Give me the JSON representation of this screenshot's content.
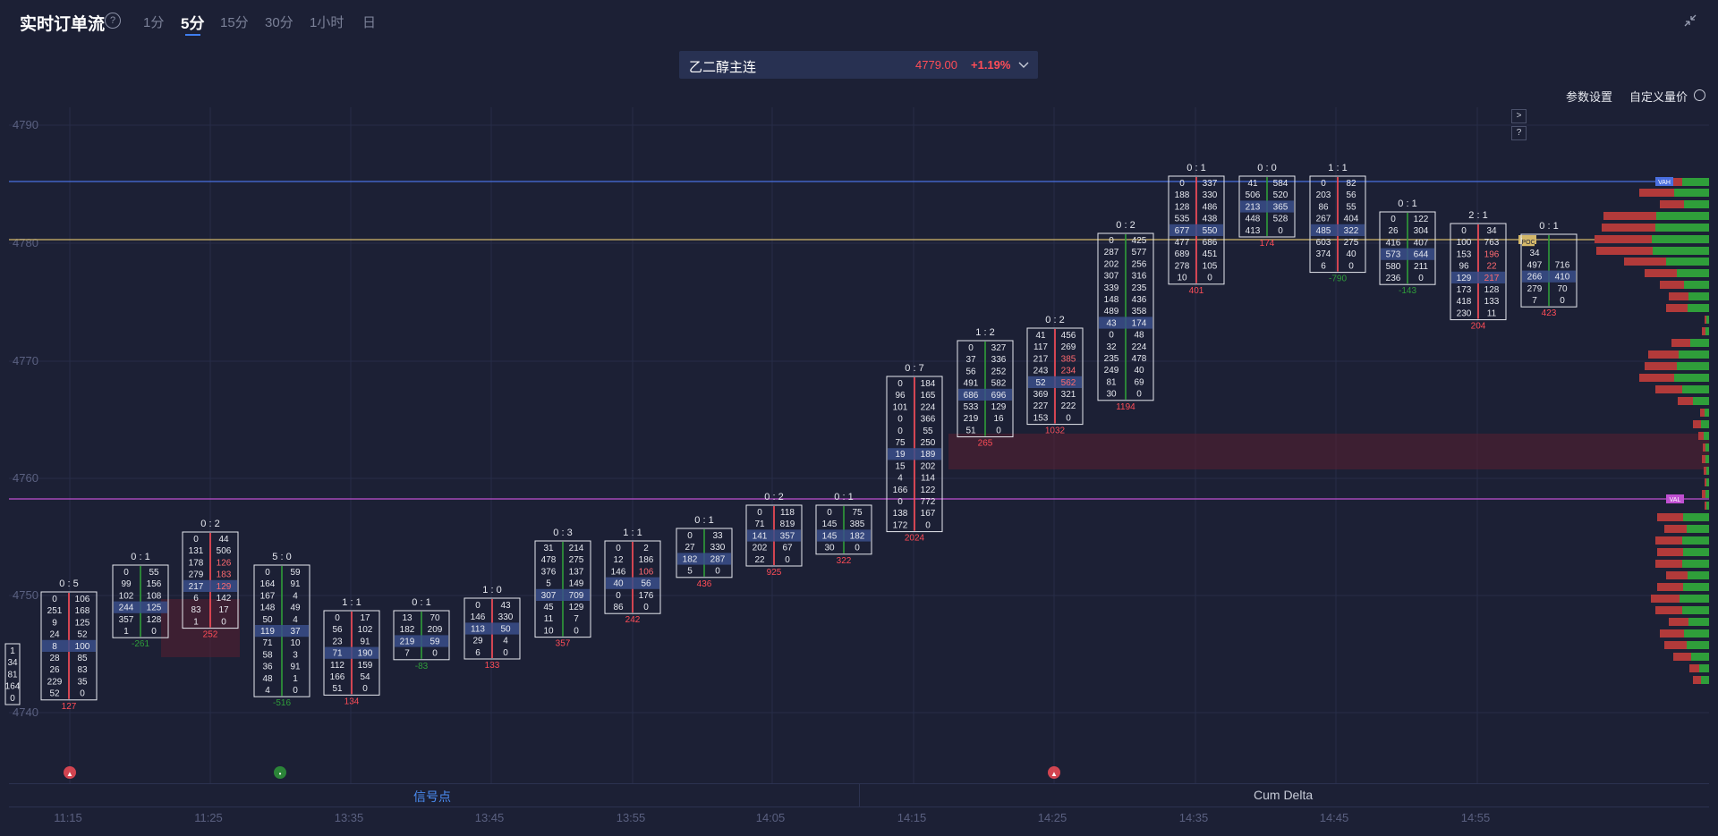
{
  "header": {
    "title": "实时订单流",
    "help_icon": "question-circle-icon",
    "tabs": [
      {
        "label": "1分",
        "active": false
      },
      {
        "label": "5分",
        "active": true
      },
      {
        "label": "15分",
        "active": false
      },
      {
        "label": "30分",
        "active": false
      },
      {
        "label": "1小时",
        "active": false
      },
      {
        "label": "日",
        "active": false
      }
    ],
    "collapse_icon": "collapse-arrows-icon"
  },
  "symbol": {
    "name": "乙二醇主连",
    "price": "4779.00",
    "change": "+1.19%",
    "dropdown_icon": "chevron-down-icon"
  },
  "settings": {
    "params_label": "参数设置",
    "custom_label": "自定义量价"
  },
  "side_buttons": [
    ">",
    "?"
  ],
  "bottom_tabs": {
    "signal": "信号点",
    "cum_delta": "Cum Delta"
  },
  "colors": {
    "background": "#1c2035",
    "up": "#ff4d57",
    "down": "#2f9e3a",
    "vah_line": "#4a6fe0",
    "poc_line": "#d4b86a",
    "val_line": "#c04fd1",
    "accent": "#3f7ef0"
  },
  "chart_data": {
    "type": "footprint",
    "y_ticks": [
      "4790",
      "4780",
      "4770",
      "4760",
      "4750",
      "4740"
    ],
    "x_ticks": [
      "11:15",
      "11:25",
      "13:35",
      "13:45",
      "13:55",
      "14:05",
      "14:15",
      "14:25",
      "14:35",
      "14:45",
      "14:55"
    ],
    "value_area": {
      "VAH": "VAH",
      "POC": "POC",
      "VAL": "VAL"
    },
    "bars": [
      {
        "head": "",
        "rows": [
          [
            "1",
            ""
          ],
          [
            "34",
            ""
          ],
          [
            "81",
            ""
          ],
          [
            "164",
            ""
          ],
          [
            "0",
            ""
          ]
        ],
        "delta": ""
      },
      {
        "head": "0 : 5",
        "rows": [
          [
            "0",
            "106"
          ],
          [
            "251",
            "168"
          ],
          [
            "9",
            "125"
          ],
          [
            "24",
            "52"
          ],
          [
            "8",
            "100"
          ],
          [
            "28",
            "85"
          ],
          [
            "26",
            "83"
          ],
          [
            "229",
            "35"
          ],
          [
            "52",
            "0"
          ]
        ],
        "delta": "127"
      },
      {
        "head": "0 : 1",
        "rows": [
          [
            "0",
            "55"
          ],
          [
            "99",
            "156"
          ],
          [
            "102",
            "108"
          ],
          [
            "244",
            "125"
          ],
          [
            "357",
            "128"
          ],
          [
            "1",
            "0"
          ]
        ],
        "delta": "-261"
      },
      {
        "head": "0 : 2",
        "rows": [
          [
            "0",
            "44"
          ],
          [
            "131",
            "506"
          ],
          [
            "178",
            "126"
          ],
          [
            "279",
            "183"
          ],
          [
            "217",
            "129"
          ],
          [
            "6",
            "142"
          ],
          [
            "83",
            "17"
          ],
          [
            "1",
            "0"
          ]
        ],
        "delta": "252"
      },
      {
        "head": "5 : 0",
        "rows": [
          [
            "0",
            "59"
          ],
          [
            "164",
            "91"
          ],
          [
            "167",
            "4"
          ],
          [
            "148",
            "49"
          ],
          [
            "50",
            "4"
          ],
          [
            "119",
            "37"
          ],
          [
            "71",
            "10"
          ],
          [
            "58",
            "3"
          ],
          [
            "36",
            "91"
          ],
          [
            "48",
            "1"
          ],
          [
            "4",
            "0"
          ]
        ],
        "delta": "-516"
      },
      {
        "head": "1 : 1",
        "rows": [
          [
            "0",
            "17"
          ],
          [
            "56",
            "102"
          ],
          [
            "23",
            "91"
          ],
          [
            "71",
            "190"
          ],
          [
            "112",
            "159"
          ],
          [
            "166",
            "54"
          ],
          [
            "51",
            "0"
          ]
        ],
        "delta": "134"
      },
      {
        "head": "0 : 1",
        "rows": [
          [
            "13",
            "70"
          ],
          [
            "182",
            "209"
          ],
          [
            "219",
            "59"
          ],
          [
            "7",
            "0"
          ]
        ],
        "delta": "-83"
      },
      {
        "head": "1 : 0",
        "rows": [
          [
            "0",
            "43"
          ],
          [
            "146",
            "330"
          ],
          [
            "113",
            "50"
          ],
          [
            "29",
            "4"
          ],
          [
            "6",
            "0"
          ]
        ],
        "delta": "133"
      },
      {
        "head": "0 : 3",
        "rows": [
          [
            "31",
            "214"
          ],
          [
            "478",
            "275"
          ],
          [
            "376",
            "137"
          ],
          [
            "5",
            "149"
          ],
          [
            "307",
            "709"
          ],
          [
            "45",
            "129"
          ],
          [
            "11",
            "7"
          ],
          [
            "10",
            "0"
          ]
        ],
        "delta": "357"
      },
      {
        "head": "1 : 1",
        "rows": [
          [
            "0",
            "2"
          ],
          [
            "12",
            "186"
          ],
          [
            "146",
            "106"
          ],
          [
            "40",
            "56"
          ],
          [
            "0",
            "176"
          ],
          [
            "86",
            "0"
          ]
        ],
        "delta": "242"
      },
      {
        "head": "0 : 1",
        "rows": [
          [
            "0",
            "33"
          ],
          [
            "27",
            "330"
          ],
          [
            "182",
            "287"
          ],
          [
            "5",
            "0"
          ]
        ],
        "delta": "436"
      },
      {
        "head": "0 : 2",
        "rows": [
          [
            "0",
            "118"
          ],
          [
            "71",
            "819"
          ],
          [
            "141",
            "357"
          ],
          [
            "202",
            "67"
          ],
          [
            "22",
            "0"
          ]
        ],
        "delta": "925"
      },
      {
        "head": "0 : 1",
        "rows": [
          [
            "0",
            "75"
          ],
          [
            "145",
            "385"
          ],
          [
            "145",
            "182"
          ],
          [
            "30",
            "0"
          ]
        ],
        "delta": "322"
      },
      {
        "head": "0 : 7",
        "rows": [
          [
            "0",
            "184"
          ],
          [
            "96",
            "165"
          ],
          [
            "101",
            "224"
          ],
          [
            "0",
            "366"
          ],
          [
            "0",
            "55"
          ],
          [
            "75",
            "250"
          ],
          [
            "19",
            "189"
          ],
          [
            "15",
            "202"
          ],
          [
            "4",
            "114"
          ],
          [
            "166",
            "122"
          ],
          [
            "0",
            "772"
          ],
          [
            "138",
            "167"
          ],
          [
            "172",
            "0"
          ]
        ],
        "delta": "2024"
      },
      {
        "head": "1 : 2",
        "rows": [
          [
            "0",
            "327"
          ],
          [
            "37",
            "336"
          ],
          [
            "56",
            "252"
          ],
          [
            "491",
            "582"
          ],
          [
            "686",
            "696"
          ],
          [
            "533",
            "129"
          ],
          [
            "219",
            "16"
          ],
          [
            "51",
            "0"
          ]
        ],
        "delta": "265"
      },
      {
        "head": "0 : 2",
        "rows": [
          [
            "41",
            "456"
          ],
          [
            "117",
            "269"
          ],
          [
            "217",
            "385"
          ],
          [
            "243",
            "234"
          ],
          [
            "52",
            "562"
          ],
          [
            "369",
            "321"
          ],
          [
            "227",
            "222"
          ],
          [
            "153",
            "0"
          ]
        ],
        "delta": "1032"
      },
      {
        "head": "0 : 2",
        "rows": [
          [
            "0",
            "425"
          ],
          [
            "287",
            "577"
          ],
          [
            "202",
            "256"
          ],
          [
            "307",
            "316"
          ],
          [
            "339",
            "235"
          ],
          [
            "148",
            "436"
          ],
          [
            "489",
            "358"
          ],
          [
            "43",
            "174"
          ],
          [
            "0",
            "48"
          ],
          [
            "32",
            "224"
          ],
          [
            "235",
            "478"
          ],
          [
            "249",
            "40"
          ],
          [
            "81",
            "69"
          ],
          [
            "30",
            "0"
          ]
        ],
        "delta": "1194"
      },
      {
        "head": "0 : 1",
        "rows": [
          [
            "0",
            "337"
          ],
          [
            "188",
            "330"
          ],
          [
            "128",
            "486"
          ],
          [
            "535",
            "438"
          ],
          [
            "677",
            "550"
          ],
          [
            "477",
            "686"
          ],
          [
            "689",
            "451"
          ],
          [
            "278",
            "105"
          ],
          [
            "10",
            "0"
          ]
        ],
        "delta": "401"
      },
      {
        "head": "0 : 0",
        "rows": [
          [
            "41",
            "584"
          ],
          [
            "506",
            "520"
          ],
          [
            "213",
            "365"
          ],
          [
            "448",
            "528"
          ],
          [
            "413",
            "0"
          ]
        ],
        "delta": "174"
      },
      {
        "head": "1 : 1",
        "rows": [
          [
            "0",
            "82"
          ],
          [
            "203",
            "56"
          ],
          [
            "86",
            "55"
          ],
          [
            "267",
            "404"
          ],
          [
            "485",
            "322"
          ],
          [
            "603",
            "275"
          ],
          [
            "374",
            "40"
          ],
          [
            "6",
            "0"
          ]
        ],
        "delta": "-790"
      },
      {
        "head": "0 : 1",
        "rows": [
          [
            "0",
            "122"
          ],
          [
            "26",
            "304"
          ],
          [
            "416",
            "407"
          ],
          [
            "573",
            "644"
          ],
          [
            "580",
            "211"
          ],
          [
            "236",
            "0"
          ]
        ],
        "delta": "-143"
      },
      {
        "head": "2 : 1",
        "rows": [
          [
            "0",
            "34"
          ],
          [
            "100",
            "763"
          ],
          [
            "153",
            "196"
          ],
          [
            "96",
            "22"
          ],
          [
            "129",
            "217"
          ],
          [
            "173",
            "128"
          ],
          [
            "418",
            "133"
          ],
          [
            "230",
            "11"
          ]
        ],
        "delta": "204"
      },
      {
        "head": "0 : 1",
        "rows": [
          [
            "POC",
            ""
          ],
          [
            "34",
            ""
          ],
          [
            "497",
            "716"
          ],
          [
            "266",
            "410"
          ],
          [
            "279",
            "70"
          ],
          [
            "7",
            "0"
          ]
        ],
        "delta": "423"
      }
    ]
  }
}
